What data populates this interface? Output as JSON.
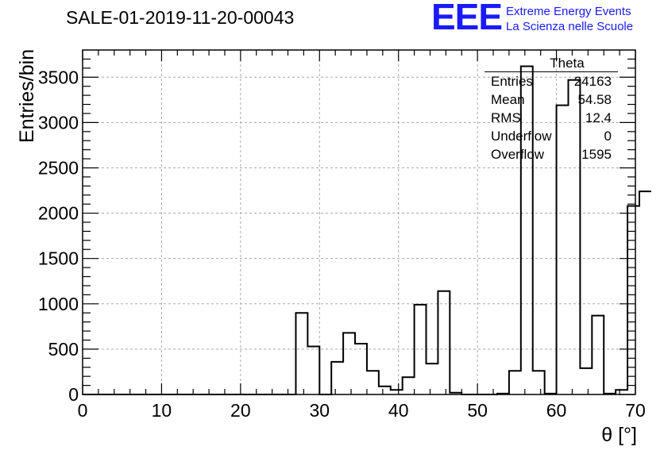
{
  "title": "SALE-01-2019-11-20-00043",
  "logo": {
    "mark": "EEE",
    "line1": "Extreme Energy Events",
    "line2": "La Scienza nelle Scuole"
  },
  "stats": {
    "title": "Theta",
    "rows": [
      {
        "label": "Entries",
        "value": "24163"
      },
      {
        "label": "Mean",
        "value": "54.58"
      },
      {
        "label": "RMS",
        "value": "12.4"
      },
      {
        "label": "Underflow",
        "value": "0"
      },
      {
        "label": "Overflow",
        "value": "1595"
      }
    ]
  },
  "chart_data": {
    "type": "histogram",
    "xlabel": "θ [°]",
    "ylabel": "Entries/bin",
    "xlim": [
      0,
      70
    ],
    "ylim": [
      0,
      3800
    ],
    "grid": true,
    "x_ticks": [
      "0",
      "10",
      "20",
      "30",
      "40",
      "50",
      "60",
      "70"
    ],
    "y_ticks": [
      "0",
      "500",
      "1000",
      "1500",
      "2000",
      "2500",
      "3000",
      "3500"
    ],
    "bin_width": 1.5,
    "bin_edges_start": 0,
    "values": [
      0,
      0,
      0,
      0,
      0,
      0,
      0,
      0,
      0,
      0,
      0,
      0,
      0,
      0,
      0,
      0,
      0,
      0,
      900,
      530,
      0,
      360,
      680,
      560,
      260,
      90,
      50,
      190,
      990,
      340,
      1140,
      20,
      0,
      0,
      0,
      10,
      260,
      3620,
      260,
      10,
      3190,
      3470,
      290,
      870,
      10,
      50,
      2080,
      2240
    ],
    "stroke": "#000000",
    "grid_color": "#a8a8a8"
  }
}
